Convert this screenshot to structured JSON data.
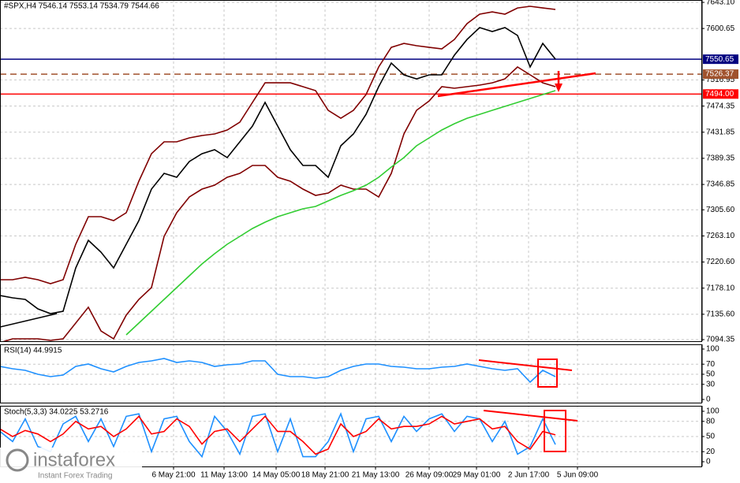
{
  "chart_data": [
    {
      "type": "line",
      "title": "#SPX,H4 7546.14 7553.14 7534.79 7544.66",
      "x": [
        0,
        4,
        8,
        12,
        16,
        20,
        24,
        28,
        32,
        36,
        40,
        44,
        48,
        52,
        56,
        60,
        64,
        68,
        72,
        76,
        80,
        84,
        88,
        92,
        96,
        100,
        104,
        108,
        112,
        116,
        120,
        124,
        128,
        132,
        136,
        140,
        144,
        148,
        152,
        156,
        160,
        164,
        168,
        172,
        176
      ],
      "xlim": [
        0,
        222.5
      ],
      "ylim": [
        7091.8,
        7647
      ],
      "grid": true,
      "yticks": [
        {
          "value": 7643.1,
          "label": "7643.10"
        },
        7600.65,
        7516.95,
        7474.35,
        7431.85,
        7389.35,
        7346.85,
        {
          "value": 7305.6,
          "label": "7305.60"
        },
        {
          "value": 7263.1,
          "label": "7263.10"
        },
        {
          "value": 7220.6,
          "label": "7220.60"
        },
        {
          "value": 7178.1,
          "label": "7178.10"
        },
        {
          "value": 7135.6,
          "label": "7135.60"
        },
        7094.35
      ],
      "series": [
        {
          "color": "#800000",
          "values": [
            7191.8,
            7191.8,
            7195.7,
            7191.8,
            7185.4,
            7191.8,
            7249.5,
            7294.4,
            7294.4,
            7288.0,
            7300.8,
            7352.1,
            7396.9,
            7416.2,
            7416.2,
            7422.6,
            7426.4,
            7429.0,
            7435.4,
            7448.2,
            7480.3,
            7512.3,
            7512.3,
            7512.3,
            7505.9,
            7499.5,
            7467.5,
            7454.6,
            7467.5,
            7493.1,
            7538.0,
            7570.0,
            7576.4,
            7572.6,
            7570.0,
            7567.5,
            7582.8,
            7608.5,
            7623.9,
            7627.7,
            7623.9,
            7634.1,
            7636.7,
            7634.1,
            7631.6
          ]
        },
        {
          "color": "#800000",
          "values": [
            7089.3,
            7095.7,
            7095.7,
            7095.7,
            7093.1,
            7095.7,
            7121.3,
            7147.0,
            7108.5,
            7095.7,
            7134.1,
            7159.8,
            7179.0,
            7262.3,
            7300.8,
            7326.4,
            7339.3,
            7345.7,
            7358.5,
            7364.9,
            7377.7,
            7377.7,
            7358.5,
            7352.1,
            7339.3,
            7329.0,
            7332.8,
            7345.7,
            7339.3,
            7339.3,
            7326.4,
            7364.9,
            7429.0,
            7467.5,
            7482.8,
            7505.9,
            7503.4,
            7505.9,
            7508.5,
            7512.3,
            7518.7,
            7538.0,
            7525.2,
            7512.3,
            7505.9
          ]
        },
        {
          "color": "#32cd32",
          "values": [
            null,
            null,
            null,
            null,
            null,
            null,
            null,
            null,
            null,
            null,
            7102.1,
            7121.3,
            7140.5,
            7159.8,
            7179.0,
            7198.2,
            7217.5,
            7234.1,
            7249.5,
            7262.3,
            7275.2,
            7285.4,
            7294.4,
            7300.8,
            7307.2,
            7311.0,
            7320.0,
            7329.0,
            7336.7,
            7345.7,
            7358.5,
            7375.2,
            7390.5,
            7409.8,
            7422.6,
            7435.4,
            7445.7,
            7454.6,
            7461.0,
            7467.5,
            7473.9,
            7480.3,
            7486.7,
            7493.1,
            7499.5
          ]
        },
        {
          "color": "#000000",
          "values": [
            7166.2,
            7162.3,
            7159.8,
            7144.4,
            7136.7,
            7140.5,
            7211.0,
            7255.9,
            7236.7,
            7211.0,
            7249.5,
            7288.0,
            7339.3,
            7364.9,
            7358.5,
            7384.1,
            7396.9,
            7403.4,
            7390.5,
            7416.2,
            7441.8,
            7480.3,
            7441.8,
            7403.4,
            7377.7,
            7377.7,
            7358.5,
            7409.8,
            7429.0,
            7461.0,
            7505.9,
            7544.4,
            7525.2,
            7518.7,
            7525.2,
            7525.2,
            7557.2,
            7582.8,
            7602.1,
            7595.7,
            7602.1,
            7589.3,
            7538.0,
            7576.4,
            7550.8
          ]
        }
      ],
      "levels": [
        {
          "value": 7550.65,
          "color": "#000080",
          "style": "solid"
        },
        {
          "value": 7526.37,
          "color": "#a0522d",
          "style": "dashed"
        },
        {
          "value": 7494,
          "value_label": "7494.00",
          "color": "#ff0000",
          "style": "solid"
        }
      ]
    },
    {
      "type": "line",
      "title": "RSI(14) 44.9915",
      "x": [
        0,
        4,
        8,
        12,
        16,
        20,
        24,
        28,
        32,
        36,
        40,
        44,
        48,
        52,
        56,
        60,
        64,
        68,
        72,
        76,
        80,
        84,
        88,
        92,
        96,
        100,
        104,
        108,
        112,
        116,
        120,
        124,
        128,
        132,
        136,
        140,
        144,
        148,
        152,
        156,
        160,
        164,
        168,
        172,
        176
      ],
      "xlim": [
        0,
        222.5
      ],
      "ylim": [
        0,
        100
      ],
      "yticks": [
        100,
        70,
        50,
        30,
        0
      ],
      "series": [
        {
          "color": "#1e90ff",
          "values": [
            65.6,
            60.9,
            57.8,
            50.0,
            45.3,
            48.4,
            65.6,
            70.3,
            60.9,
            54.7,
            65.6,
            73.4,
            76.6,
            81.3,
            73.4,
            76.6,
            73.4,
            65.6,
            68.8,
            70.3,
            76.6,
            76.6,
            50.0,
            45.3,
            45.3,
            42.2,
            45.3,
            57.8,
            65.6,
            70.3,
            70.3,
            65.6,
            64.1,
            60.9,
            60.9,
            64.1,
            65.6,
            70.3,
            65.6,
            60.9,
            57.8,
            60.9,
            34.4,
            57.8,
            45.3
          ]
        }
      ]
    },
    {
      "type": "line",
      "title": "Stoch(5,3,3) 34.0225 53.2716",
      "x": [
        0,
        4,
        8,
        12,
        16,
        20,
        24,
        28,
        32,
        36,
        40,
        44,
        48,
        52,
        56,
        60,
        64,
        68,
        72,
        76,
        80,
        84,
        88,
        92,
        96,
        100,
        104,
        108,
        112,
        116,
        120,
        124,
        128,
        132,
        136,
        140,
        144,
        148,
        152,
        156,
        160,
        164,
        168,
        172,
        176
      ],
      "xlim": [
        0,
        222.5
      ],
      "ylim": [
        0,
        100
      ],
      "yticks": [
        100,
        80,
        50,
        20,
        0
      ],
      "xticks": [
        {
          "value": 55,
          "label": "6 May 21:00"
        },
        {
          "value": 71,
          "label": "11 May 13:00"
        },
        {
          "value": 87.5,
          "label": "14 May 05:00"
        },
        {
          "value": 103,
          "label": "18 May 21:00"
        },
        {
          "value": 119,
          "label": "21 May 13:00"
        },
        {
          "value": 136,
          "label": "26 May 09:00"
        },
        {
          "value": 151,
          "label": "29 May 01:00"
        },
        {
          "value": 167.5,
          "label": "2 Jun 17:00"
        },
        {
          "value": 183,
          "label": "5 Jun 09:00"
        }
      ],
      "series": [
        {
          "color": "#1e90ff",
          "values": [
            60,
            40,
            85,
            30,
            20,
            75,
            90,
            40,
            85,
            30,
            90,
            95,
            20,
            85,
            90,
            40,
            10,
            90,
            60,
            15,
            90,
            95,
            20,
            85,
            10,
            10,
            40,
            95,
            20,
            85,
            90,
            40,
            90,
            60,
            85,
            95,
            60,
            90,
            85,
            40,
            80,
            15,
            30,
            85,
            34.0225
          ]
        },
        {
          "color": "#ff0000",
          "values": [
            65,
            50,
            62,
            55,
            40,
            55,
            80,
            65,
            70,
            50,
            65,
            90,
            55,
            60,
            85,
            70,
            35,
            60,
            65,
            40,
            65,
            90,
            60,
            60,
            40,
            15,
            25,
            75,
            50,
            60,
            85,
            65,
            70,
            70,
            75,
            90,
            75,
            80,
            85,
            65,
            70,
            40,
            25,
            60,
            53.2716
          ]
        }
      ]
    }
  ],
  "watermark": {
    "brand": "instaforex",
    "tagline": "Instant Forex Trading"
  }
}
